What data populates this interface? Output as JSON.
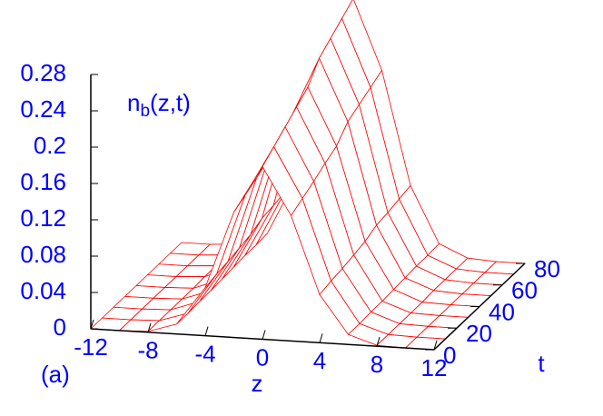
{
  "chart_data": {
    "type": "surface",
    "x": [
      -12,
      -10,
      -8,
      -6,
      -4,
      -2,
      0,
      2,
      4,
      6,
      8,
      10,
      12
    ],
    "y": [
      0,
      10,
      20,
      30,
      40,
      50,
      60,
      70,
      80
    ],
    "values": [
      [
        0,
        0,
        0.001,
        0.011,
        0.053,
        0.138,
        0.19,
        0.138,
        0.053,
        0.011,
        0.001,
        0,
        0
      ],
      [
        0,
        0,
        0.001,
        0.011,
        0.056,
        0.145,
        0.2,
        0.145,
        0.056,
        0.011,
        0.001,
        0,
        0
      ],
      [
        0,
        0,
        0.001,
        0.012,
        0.058,
        0.152,
        0.21,
        0.152,
        0.058,
        0.012,
        0.001,
        0,
        0
      ],
      [
        0,
        0,
        0.001,
        0.012,
        0.061,
        0.16,
        0.22,
        0.16,
        0.061,
        0.012,
        0.001,
        0,
        0
      ],
      [
        0,
        0,
        0.001,
        0.013,
        0.064,
        0.167,
        0.23,
        0.167,
        0.064,
        0.013,
        0.001,
        0,
        0
      ],
      [
        0,
        0,
        0.002,
        0.014,
        0.07,
        0.182,
        0.25,
        0.182,
        0.07,
        0.014,
        0.002,
        0,
        0
      ],
      [
        0,
        0,
        0.002,
        0.015,
        0.072,
        0.189,
        0.26,
        0.189,
        0.072,
        0.015,
        0.002,
        0,
        0
      ],
      [
        0,
        0,
        0.002,
        0.015,
        0.075,
        0.196,
        0.27,
        0.196,
        0.075,
        0.015,
        0.002,
        0,
        0
      ],
      [
        0,
        0,
        0.002,
        0.016,
        0.078,
        0.203,
        0.28,
        0.203,
        0.078,
        0.016,
        0.002,
        0,
        0
      ]
    ],
    "color": "#ff0000",
    "label_color": "#0000ff",
    "xlabel": "z",
    "ylabel": "t",
    "zlabel": {
      "base": "n",
      "sub": "b",
      "rest": "(z,t)"
    },
    "panel_label": "(a)",
    "xlim": [
      -12,
      12
    ],
    "xticks": [
      -12,
      -8,
      -4,
      0,
      4,
      8,
      12
    ],
    "ylim": [
      0,
      80
    ],
    "yticks": [
      0,
      20,
      40,
      60,
      80
    ],
    "zlim": [
      0,
      0.28
    ],
    "zticks": [
      0,
      0.04,
      0.08,
      0.12,
      0.16,
      0.2,
      0.24,
      0.28
    ]
  }
}
